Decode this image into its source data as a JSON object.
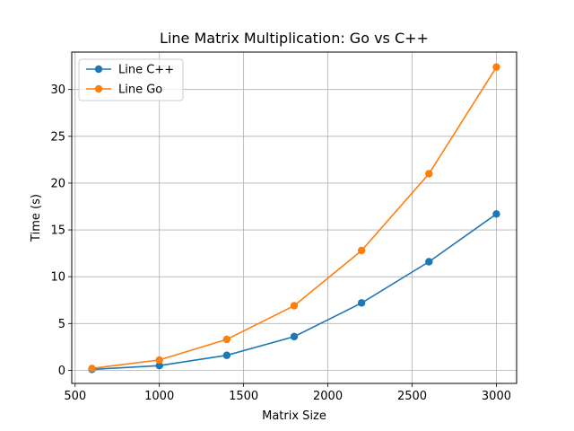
{
  "chart_data": {
    "type": "line",
    "title": "Line Matrix Multiplication: Go vs C++",
    "xlabel": "Matrix Size",
    "ylabel": "Time (s)",
    "xlim": [
      480,
      3120
    ],
    "ylim": [
      -1.4,
      34.0
    ],
    "xticks": [
      500,
      1000,
      1500,
      2000,
      2500,
      3000
    ],
    "yticks": [
      0,
      5,
      10,
      15,
      20,
      25,
      30
    ],
    "grid": true,
    "legend_position": "upper-left",
    "x": [
      600,
      1000,
      1400,
      1800,
      2200,
      2600,
      3000
    ],
    "series": [
      {
        "name": "Line C++",
        "color": "#1f77b4",
        "marker": "circle",
        "values": [
          0.1,
          0.5,
          1.6,
          3.6,
          7.2,
          11.6,
          16.7
        ]
      },
      {
        "name": "Line Go",
        "color": "#ff7f0e",
        "marker": "circle",
        "values": [
          0.2,
          1.1,
          3.3,
          6.9,
          12.8,
          21.0,
          32.4
        ]
      }
    ]
  }
}
